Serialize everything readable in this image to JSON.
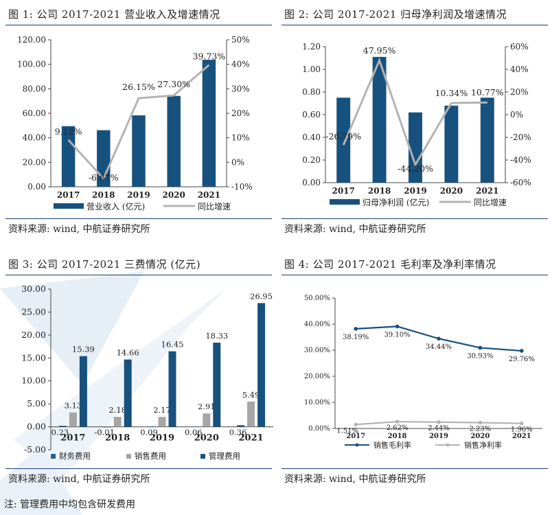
{
  "colors": {
    "bar": "#17517e",
    "line_gray": "#b3b3b3",
    "gray_bar": "#a6a6a6",
    "rule": "#1f3b73",
    "text": "#222222"
  },
  "panels": [
    {
      "title": "图 1: 公司 2017-2021 营业收入及增速情况",
      "source": "资料来源: wind, 中航证券研究所"
    },
    {
      "title": "图 2: 公司 2017-2021 归母净利润及增速情况",
      "source": "资料来源: wind, 中航证券研究所"
    },
    {
      "title": "图 3: 公司 2017-2021 三费情况 (亿元)",
      "source": "资料来源: wind, 中航证券研究所"
    },
    {
      "title": "图 4: 公司 2017-2021 毛利率及净利率情况",
      "source": "资料来源: wind, 中航证券研究所"
    }
  ],
  "note": "注: 管理费用中均包含研发费用",
  "chart_data": [
    {
      "type": "bar",
      "title": "公司 2017-2021 营业收入及增速情况",
      "categories": [
        "2017",
        "2018",
        "2019",
        "2020",
        "2021"
      ],
      "ylim": [
        0,
        120
      ],
      "yticks": [
        "0.00",
        "20.00",
        "40.00",
        "60.00",
        "80.00",
        "100.00",
        "120.00"
      ],
      "y2lim": [
        -10,
        50
      ],
      "y2ticks": [
        "-10%",
        "0%",
        "10%",
        "20%",
        "30%",
        "40%",
        "50%"
      ],
      "series": [
        {
          "name": "营业收入 (亿元)",
          "kind": "bar",
          "axis": "left",
          "values": [
            49.5,
            46.2,
            58.3,
            74.2,
            103.7
          ]
        },
        {
          "name": "同比增速",
          "kind": "line",
          "axis": "right",
          "values": [
            9.12,
            -6.67,
            26.15,
            27.3,
            39.73
          ],
          "labels": [
            "9.12%",
            "-6.67%",
            "26.15%",
            "27.30%",
            "39.73%"
          ]
        }
      ]
    },
    {
      "type": "bar",
      "title": "公司 2017-2021 归母净利润及增速情况",
      "categories": [
        "2017",
        "2018",
        "2019",
        "2020",
        "2021"
      ],
      "ylim": [
        0,
        1.2
      ],
      "yticks": [
        "0.00",
        "0.20",
        "0.40",
        "0.60",
        "0.80",
        "1.00",
        "1.20"
      ],
      "y2lim": [
        -60,
        60
      ],
      "y2ticks": [
        "-60%",
        "-40%",
        "-20%",
        "0%",
        "20%",
        "40%",
        "60%"
      ],
      "series": [
        {
          "name": "归母净利润 (亿元)",
          "kind": "bar",
          "axis": "left",
          "values": [
            0.75,
            1.11,
            0.62,
            0.68,
            0.75
          ]
        },
        {
          "name": "同比增速",
          "kind": "line",
          "axis": "right",
          "values": [
            -26.79,
            47.95,
            -44.2,
            10.34,
            10.77
          ],
          "labels": [
            "-26.79%",
            "47.95%",
            "-44.20%",
            "10.34%",
            "10.77%"
          ]
        }
      ]
    },
    {
      "type": "bar",
      "title": "公司 2017-2021 三费情况 (亿元)",
      "categories": [
        "2017",
        "2018",
        "2019",
        "2020",
        "2021"
      ],
      "ylim": [
        -5,
        30
      ],
      "yticks": [
        "-5.00",
        "0.00",
        "5.00",
        "10.00",
        "15.00",
        "20.00",
        "25.00",
        "30.00"
      ],
      "series": [
        {
          "name": "财务费用",
          "kind": "bar",
          "values": [
            0.23,
            -0.01,
            0.09,
            0.06,
            0.36
          ],
          "labels": [
            "0.23",
            "-0.01",
            "0.09",
            "0.06",
            "0.36"
          ]
        },
        {
          "name": "销售费用",
          "kind": "bar",
          "values": [
            3.13,
            2.18,
            2.17,
            2.91,
            5.49
          ],
          "labels": [
            "3.13",
            "2.18",
            "2.17",
            "2.91",
            "5.49"
          ]
        },
        {
          "name": "管理费用",
          "kind": "bar",
          "values": [
            15.39,
            14.66,
            16.45,
            18.33,
            26.95
          ],
          "labels": [
            "15.39",
            "14.66",
            "16.45",
            "18.33",
            "26.95"
          ]
        }
      ]
    },
    {
      "type": "line",
      "title": "公司 2017-2021 毛利率及净利率情况",
      "categories": [
        "2017",
        "2018",
        "2019",
        "2020",
        "2021"
      ],
      "ylim": [
        0,
        50
      ],
      "yticks": [
        "0.00%",
        "10.00%",
        "20.00%",
        "30.00%",
        "40.00%",
        "50.00%"
      ],
      "series": [
        {
          "name": "销售毛利率",
          "values": [
            38.19,
            39.1,
            34.44,
            30.93,
            29.76
          ],
          "labels": [
            "38.19%",
            "39.10%",
            "34.44%",
            "30.93%",
            "29.76%"
          ]
        },
        {
          "name": "销售净利率",
          "values": [
            1.51,
            2.62,
            2.44,
            2.23,
            1.96
          ],
          "labels": [
            "1.51%",
            "2.62%",
            "2.44%",
            "2.23%",
            "1.96%"
          ]
        }
      ]
    }
  ]
}
